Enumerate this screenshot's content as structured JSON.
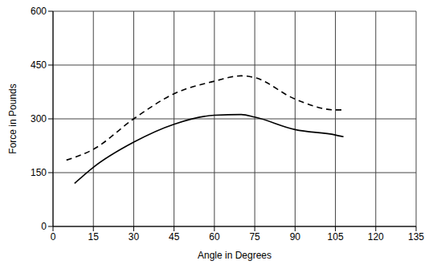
{
  "chart_data": {
    "type": "line",
    "x_label": "Angle in Degrees",
    "y_label": "Force in Pounds",
    "xlim": [
      0,
      135
    ],
    "xticks": [
      0,
      15,
      30,
      45,
      60,
      75,
      90,
      105,
      120,
      135
    ],
    "ylim": [
      0,
      600
    ],
    "yticks": [
      0,
      150,
      300,
      450,
      600
    ],
    "grid": true,
    "series": [
      {
        "color": "#000000",
        "line_style": "dashed",
        "x": [
          5,
          15,
          30,
          45,
          60,
          70,
          75,
          90,
          105,
          108
        ],
        "values": [
          185,
          215,
          300,
          370,
          405,
          420,
          415,
          355,
          325,
          325
        ]
      },
      {
        "color": "#000000",
        "line_style": "solid",
        "x": [
          8,
          15,
          30,
          45,
          60,
          70,
          75,
          90,
          105,
          108
        ],
        "values": [
          120,
          165,
          235,
          285,
          310,
          312,
          305,
          270,
          255,
          250
        ]
      }
    ]
  }
}
